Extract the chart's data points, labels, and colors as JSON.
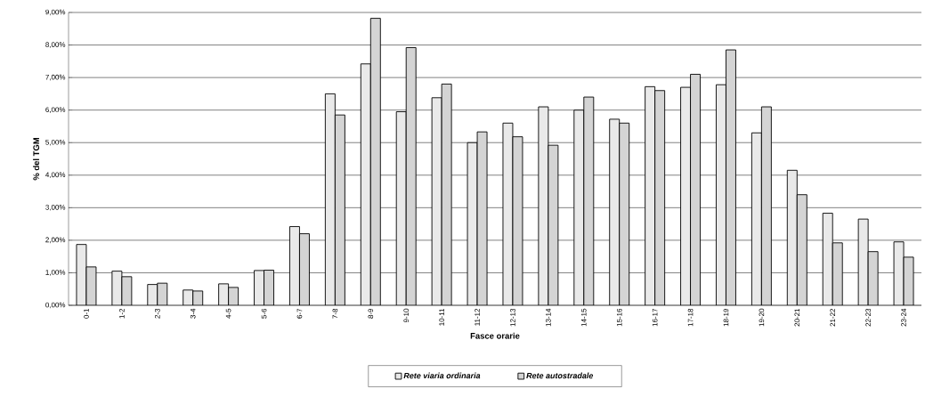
{
  "chart_data": {
    "type": "bar",
    "xlabel": "Fasce orarie",
    "ylabel": "% del TGM",
    "categories": [
      "0-1",
      "1-2",
      "2-3",
      "3-4",
      "4-5",
      "5-6",
      "6-7",
      "7-8",
      "8-9",
      "9-10",
      "10-11",
      "11-12",
      "12-13",
      "13-14",
      "14-15",
      "15-16",
      "16-17",
      "17-18",
      "18-19",
      "19-20",
      "20-21",
      "21-22",
      "22-23",
      "23-24"
    ],
    "series": [
      {
        "name": "Rete viaria ordinaria",
        "color": "#e9e9e9",
        "values": [
          1.87,
          1.05,
          0.64,
          0.47,
          0.66,
          1.07,
          2.42,
          6.5,
          7.42,
          5.95,
          6.38,
          5.0,
          5.6,
          6.1,
          6.0,
          5.72,
          6.72,
          6.7,
          6.78,
          5.3,
          4.15,
          2.83,
          2.65,
          1.95
        ]
      },
      {
        "name": "Rete autostradale",
        "color": "#d4d4d4",
        "values": [
          1.18,
          0.88,
          0.68,
          0.44,
          0.55,
          1.08,
          2.2,
          5.85,
          8.82,
          7.92,
          6.8,
          5.33,
          5.18,
          4.92,
          6.4,
          5.6,
          6.6,
          7.1,
          7.85,
          6.1,
          3.4,
          1.92,
          1.65,
          1.48
        ]
      }
    ],
    "ylim": [
      0,
      9
    ],
    "yticks": [
      {
        "value": 0,
        "label": "0,00%"
      },
      {
        "value": 1,
        "label": "1,00%"
      },
      {
        "value": 2,
        "label": "2,00%"
      },
      {
        "value": 3,
        "label": "3,00%"
      },
      {
        "value": 4,
        "label": "4,00%"
      },
      {
        "value": 5,
        "label": "5,00%"
      },
      {
        "value": 6,
        "label": "6,00%"
      },
      {
        "value": 7,
        "label": "7,00%"
      },
      {
        "value": 8,
        "label": "8,00%"
      },
      {
        "value": 9,
        "label": "9,00%"
      }
    ],
    "grid": "y",
    "legend": "bottom"
  }
}
